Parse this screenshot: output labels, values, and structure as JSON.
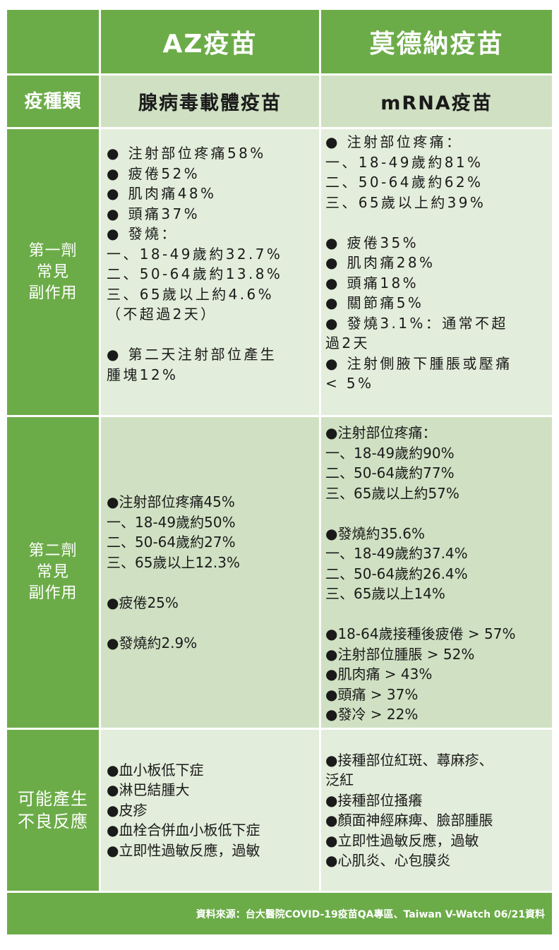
{
  "header": {
    "col_az": "AZ疫苗",
    "col_moderna": "莫德納疫苗"
  },
  "type_row": {
    "label": "疫種類",
    "az": "腺病毒載體疫苗",
    "moderna": "mRNA疫苗"
  },
  "dose1": {
    "label": "第一劑\n常見\n副作用",
    "az": "● 注射部位疼痛58%\n● 疲倦52%\n● 肌肉痛48%\n● 頭痛37%\n● 發燒：\n一、18-49歲約32.7%\n二、50-64歲約13.8%\n三、65歲以上約4.6%\n（不超過2天）\n\n● 第二天注射部位產生\n腫塊12%",
    "moderna": "● 注射部位疼痛：\n一、18-49歲約81%\n二、50-64歲約62%\n三、65歲以上約39%\n\n● 疲倦35%\n● 肌肉痛28%\n● 頭痛18%\n● 關節痛5%\n● 發燒3.1%：通常不超\n過2天\n● 注射側腋下腫脹或壓痛\n< 5%"
  },
  "dose2": {
    "label": "第二劑\n常見\n副作用",
    "az": "●注射部位疼痛45%\n一、18-49歲約50%\n二、50-64歲約27%\n三、65歲以上12.3%\n\n●疲倦25%\n\n●發燒約2.9%",
    "moderna": "●注射部位疼痛：\n一、18-49歲約90%\n二、50-64歲約77%\n三、65歲以上約57%\n\n●發燒約35.6%\n一、18-49歲約37.4%\n二、50-64歲約26.4%\n三、65歲以上14%\n\n●18-64歲接種後疲倦 > 57%\n●注射部位腫脹 > 52%\n●肌肉痛 > 43%\n●頭痛 > 37%\n●發冷 > 22%"
  },
  "adverse": {
    "label": "可能產生\n不良反應",
    "az": "●血小板低下症\n●淋巴結腫大\n●皮疹\n●血栓合併血小板低下症\n●立即性過敏反應，過敏",
    "moderna": "●接種部位紅斑、蕁麻疹、\n   泛紅\n●接種部位搔癢\n●顏面神經麻痺、臉部腫脹\n●立即性過敏反應，過敏\n●心肌炎、心包膜炎"
  },
  "footer": {
    "source": "資料來源：台大醫院COVID-19疫苗QA專區、Taiwan V-Watch 06/21資料"
  }
}
